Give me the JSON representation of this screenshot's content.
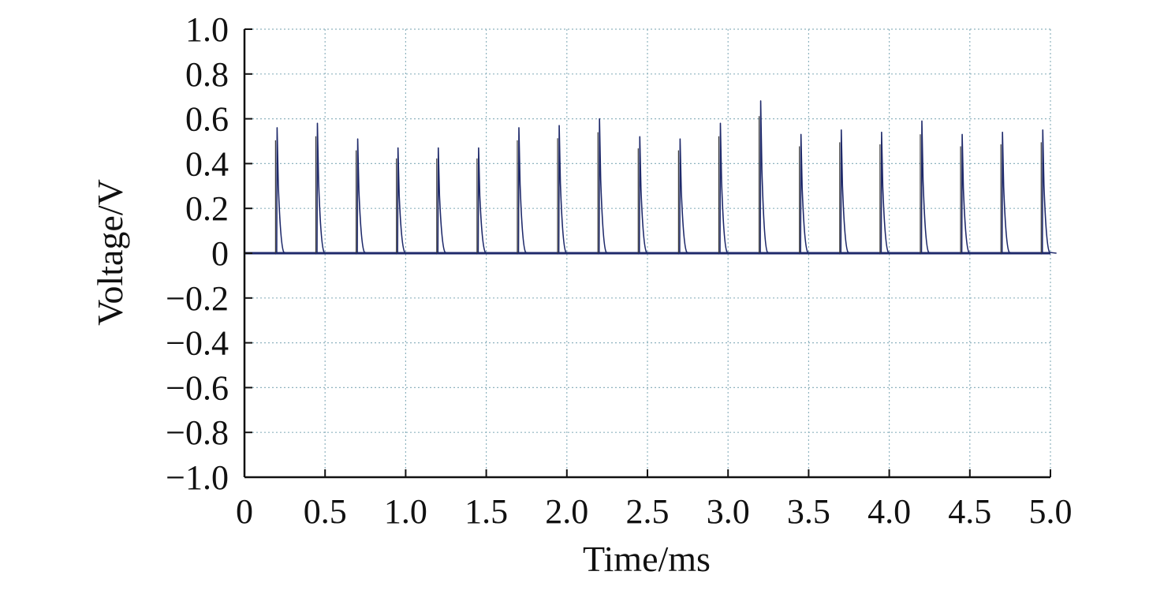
{
  "chart_data": {
    "type": "line",
    "title": "",
    "xlabel": "Time/ms",
    "ylabel": "Voltage/V",
    "xlim": [
      0,
      5.0
    ],
    "ylim": [
      -1.0,
      1.0
    ],
    "xticks": [
      0,
      0.5,
      1.0,
      1.5,
      2.0,
      2.5,
      3.0,
      3.5,
      4.0,
      4.5,
      5.0
    ],
    "xtick_labels": [
      "0",
      "0.5",
      "1.0",
      "1.5",
      "2.0",
      "2.5",
      "3.0",
      "3.5",
      "4.0",
      "4.5",
      "5.0"
    ],
    "yticks": [
      1.0,
      0.8,
      0.6,
      0.4,
      0.2,
      0,
      -0.2,
      -0.4,
      -0.6,
      -0.8,
      -1.0
    ],
    "ytick_labels": [
      "1.0",
      "0.8",
      "0.6",
      "0.4",
      "0.2",
      "0",
      "−0.2",
      "−0.4",
      "−0.6",
      "−0.8",
      "−1.0"
    ],
    "grid": true,
    "baseline_value": 0,
    "colors": {
      "trace": "#1f2a6b",
      "trace_secondary": "#3a3a3a",
      "grid": "#8fb3bf",
      "axis": "#111111"
    },
    "pulses": [
      {
        "t": 0.2,
        "peak": 0.56
      },
      {
        "t": 0.45,
        "peak": 0.58
      },
      {
        "t": 0.7,
        "peak": 0.51
      },
      {
        "t": 0.95,
        "peak": 0.47
      },
      {
        "t": 1.2,
        "peak": 0.47
      },
      {
        "t": 1.45,
        "peak": 0.47
      },
      {
        "t": 1.7,
        "peak": 0.56
      },
      {
        "t": 1.95,
        "peak": 0.57
      },
      {
        "t": 2.2,
        "peak": 0.6
      },
      {
        "t": 2.45,
        "peak": 0.52
      },
      {
        "t": 2.7,
        "peak": 0.51
      },
      {
        "t": 2.95,
        "peak": 0.58
      },
      {
        "t": 3.2,
        "peak": 0.68
      },
      {
        "t": 3.45,
        "peak": 0.53
      },
      {
        "t": 3.7,
        "peak": 0.55
      },
      {
        "t": 3.95,
        "peak": 0.54
      },
      {
        "t": 4.2,
        "peak": 0.59
      },
      {
        "t": 4.45,
        "peak": 0.53
      },
      {
        "t": 4.7,
        "peak": 0.54
      },
      {
        "t": 4.95,
        "peak": 0.55
      }
    ]
  }
}
